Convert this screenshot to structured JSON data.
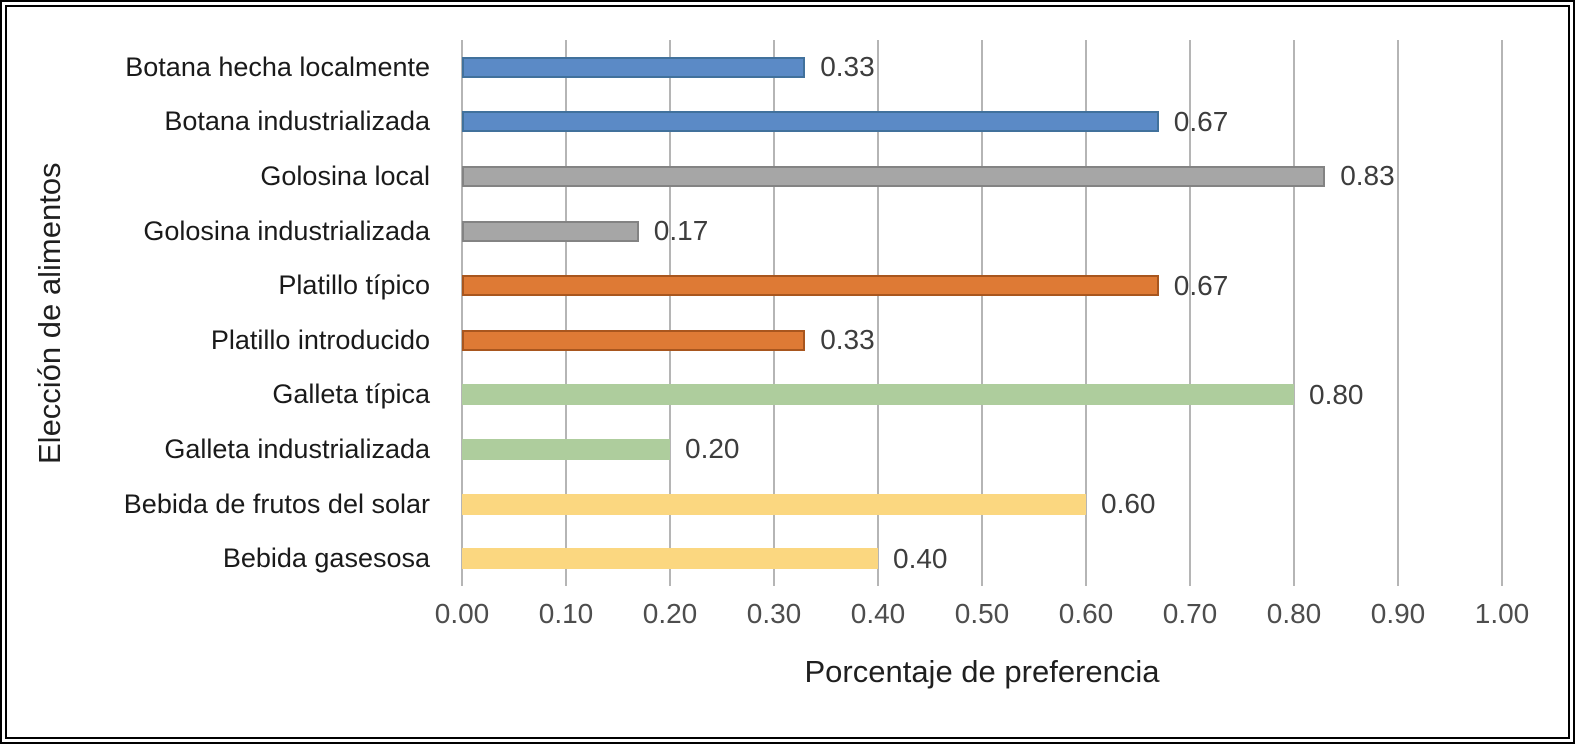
{
  "chart_data": {
    "type": "bar",
    "orientation": "horizontal",
    "xlabel": "Porcentaje de preferencia",
    "ylabel": "Elección de alimentos",
    "xlim": [
      0,
      1
    ],
    "grid": true,
    "legend": "none",
    "x_ticks": [
      "0.00",
      "0.10",
      "0.20",
      "0.30",
      "0.40",
      "0.50",
      "0.60",
      "0.70",
      "0.80",
      "0.90",
      "1.00"
    ],
    "categories": [
      "Botana hecha localmente",
      "Botana industrializada",
      "Golosina local",
      "Golosina industrializada",
      "Platillo típico",
      "Platillo introducido",
      "Galleta típica",
      "Galleta industrializada",
      "Bebida de frutos del solar",
      "Bebida gasesosa"
    ],
    "values": [
      0.33,
      0.67,
      0.83,
      0.17,
      0.67,
      0.33,
      0.8,
      0.2,
      0.6,
      0.4
    ],
    "value_labels": [
      "0.33",
      "0.67",
      "0.83",
      "0.17",
      "0.67",
      "0.33",
      "0.80",
      "0.20",
      "0.60",
      "0.40"
    ],
    "bar_colors": [
      "#5b8ac6",
      "#5b8ac6",
      "#a6a6a6",
      "#a6a6a6",
      "#de7a35",
      "#de7a35",
      "#aecd9d",
      "#aecd9d",
      "#fbd780",
      "#fbd780"
    ],
    "bar_border_colors": [
      "#41719c",
      "#41719c",
      "#838383",
      "#838383",
      "#a8561e",
      "#a8561e",
      "#aecd9d",
      "#aecd9d",
      "#fbd780",
      "#fbd780"
    ],
    "gridline_color": "#b5b5b5"
  }
}
